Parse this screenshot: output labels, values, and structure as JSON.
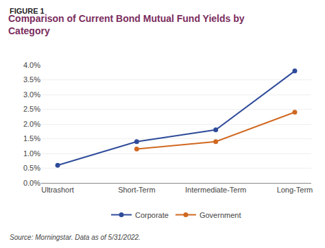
{
  "chart_data": {
    "type": "line",
    "title": "Comparison of Current Bond Mutual Fund Yields by\nCategory",
    "annotations": [
      "FIGURE 1",
      "Source: Morningstar. Data as of 5/31/2022."
    ],
    "categories": [
      "Ultrashort",
      "Short-Term",
      "Intermediate-Term",
      "Long-Term"
    ],
    "series": [
      {
        "name": "Corporate",
        "color": "#2E4B9A",
        "values": [
          0.6,
          1.4,
          1.8,
          3.8
        ]
      },
      {
        "name": "Government",
        "color": "#D06820",
        "values": [
          null,
          1.15,
          1.4,
          2.4
        ]
      }
    ],
    "ylim": [
      0.0,
      4.0
    ],
    "yticks": [
      {
        "value": 0.0,
        "label": "0.0%"
      },
      {
        "value": 0.5,
        "label": "0.5%"
      },
      {
        "value": 1.0,
        "label": "1.0%"
      },
      {
        "value": 1.5,
        "label": "1.5%"
      },
      {
        "value": 2.0,
        "label": "2.0%"
      },
      {
        "value": 2.5,
        "label": "2.5%"
      },
      {
        "value": 3.0,
        "label": "3.0%"
      },
      {
        "value": 3.5,
        "label": "3.5%"
      },
      {
        "value": 4.0,
        "label": "4.0%"
      }
    ],
    "grid": true,
    "legend": "bottom",
    "marker": "circle"
  }
}
